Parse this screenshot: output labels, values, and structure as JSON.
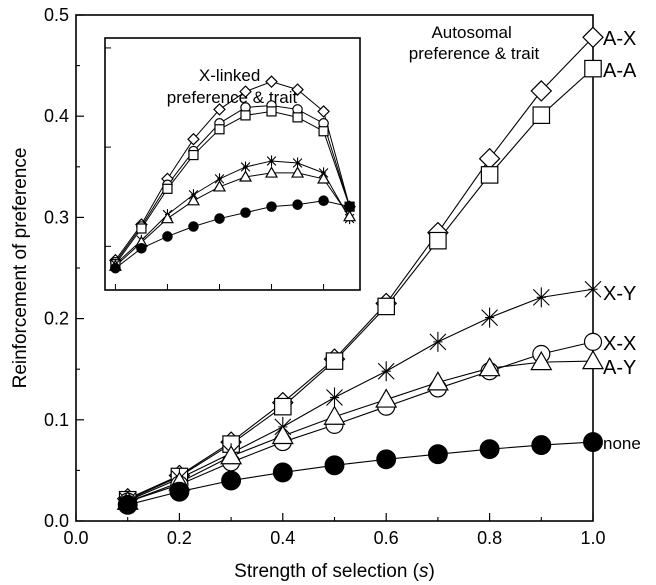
{
  "chart_data": [
    {
      "type": "line",
      "title": "",
      "xlabel_main": "Strength of selection (",
      "xlabel_var": "s",
      "xlabel_end": ")",
      "ylabel": "Reinforcement of preference",
      "xlim": [
        0.0,
        1.0
      ],
      "ylim": [
        0.0,
        0.5
      ],
      "x_ticks": [
        "0.0",
        "0.2",
        "0.4",
        "0.6",
        "0.8",
        "1.0"
      ],
      "y_ticks": [
        "0.0",
        "0.1",
        "0.2",
        "0.3",
        "0.4",
        "0.5"
      ],
      "annotation": [
        "Autosomal",
        "preference & trait"
      ],
      "x": [
        0.1,
        0.2,
        0.3,
        0.4,
        0.5,
        0.6,
        0.7,
        0.8,
        0.9,
        1.0
      ],
      "series": [
        {
          "name": "A-X",
          "marker": "diamond",
          "values": [
            0.022,
            0.045,
            0.078,
            0.117,
            0.16,
            0.215,
            0.285,
            0.358,
            0.425,
            0.478
          ]
        },
        {
          "name": "A-A",
          "marker": "square",
          "values": [
            0.021,
            0.044,
            0.076,
            0.113,
            0.158,
            0.212,
            0.277,
            0.342,
            0.401,
            0.447
          ]
        },
        {
          "name": "X-Y",
          "marker": "star",
          "values": [
            0.02,
            0.042,
            0.067,
            0.093,
            0.122,
            0.148,
            0.177,
            0.201,
            0.221,
            0.229
          ]
        },
        {
          "name": "X-X",
          "marker": "circle-open",
          "values": [
            0.019,
            0.036,
            0.058,
            0.078,
            0.095,
            0.113,
            0.131,
            0.148,
            0.165,
            0.177
          ]
        },
        {
          "name": "A-Y",
          "marker": "triangle",
          "values": [
            0.019,
            0.038,
            0.064,
            0.084,
            0.103,
            0.12,
            0.137,
            0.151,
            0.157,
            0.158
          ]
        },
        {
          "name": "none",
          "marker": "circle-filled",
          "values": [
            0.016,
            0.029,
            0.04,
            0.048,
            0.055,
            0.061,
            0.066,
            0.071,
            0.075,
            0.078
          ]
        }
      ]
    },
    {
      "type": "line",
      "title": [
        "X-linked",
        "preference & trait"
      ],
      "xlim": [
        0.08,
        0.57
      ],
      "ylim": [
        0.228,
        0.355
      ],
      "x": [
        0.1,
        0.15,
        0.2,
        0.25,
        0.3,
        0.35,
        0.4,
        0.45,
        0.5,
        0.55
      ],
      "series": [
        {
          "marker": "diamond",
          "values": [
            0.243,
            0.261,
            0.284,
            0.304,
            0.319,
            0.328,
            0.333,
            0.329,
            0.318,
            0.27
          ]
        },
        {
          "marker": "circle-open",
          "values": [
            0.242,
            0.26,
            0.281,
            0.298,
            0.312,
            0.32,
            0.321,
            0.319,
            0.312,
            0.27
          ]
        },
        {
          "marker": "square",
          "values": [
            0.241,
            0.259,
            0.279,
            0.296,
            0.309,
            0.316,
            0.318,
            0.315,
            0.308,
            0.27
          ]
        },
        {
          "marker": "star",
          "values": [
            0.241,
            0.253,
            0.266,
            0.276,
            0.284,
            0.29,
            0.293,
            0.292,
            0.287,
            0.264
          ]
        },
        {
          "marker": "triangle",
          "values": [
            0.24,
            0.252,
            0.264,
            0.273,
            0.28,
            0.285,
            0.287,
            0.287,
            0.284,
            0.265
          ]
        },
        {
          "marker": "circle-filled",
          "values": [
            0.239,
            0.249,
            0.255,
            0.26,
            0.264,
            0.267,
            0.27,
            0.271,
            0.273,
            0.27
          ]
        }
      ]
    }
  ]
}
